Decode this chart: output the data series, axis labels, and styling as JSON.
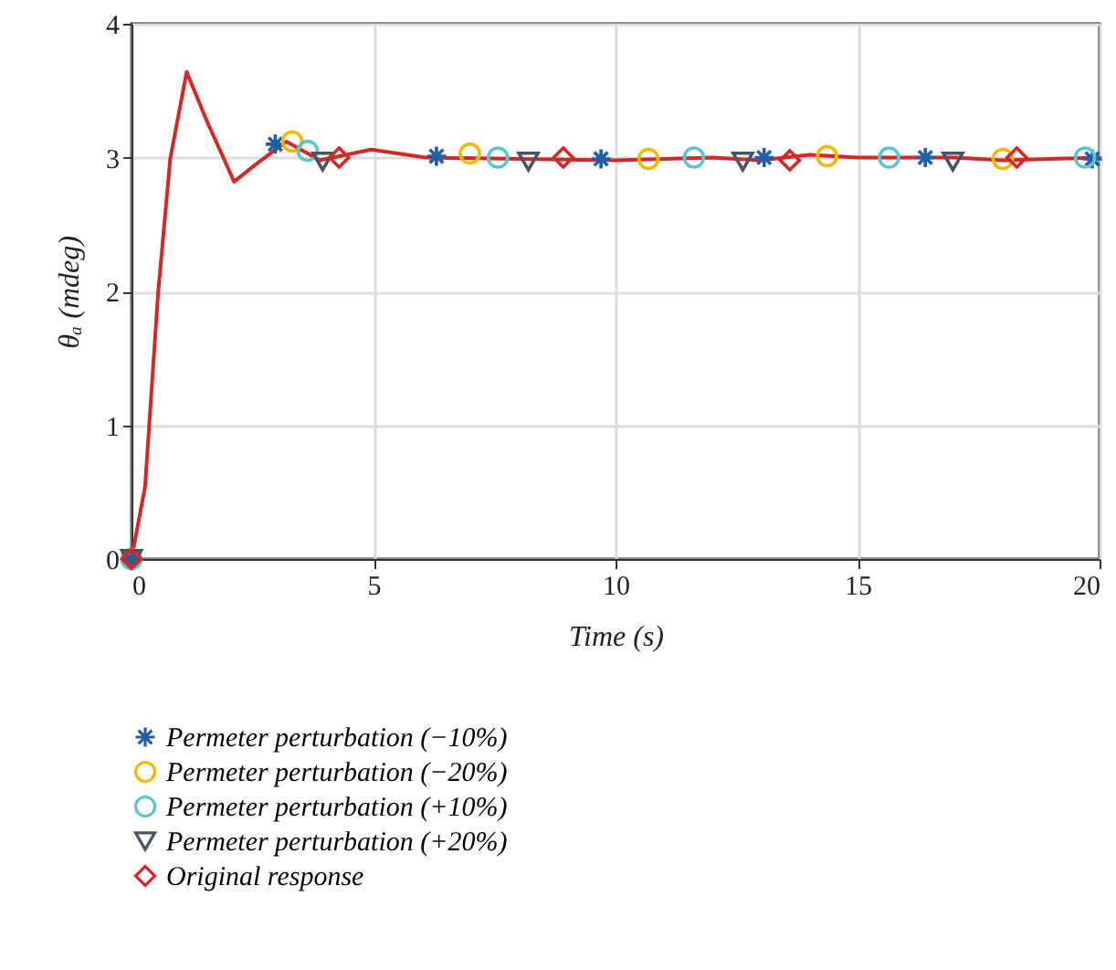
{
  "chart_data": {
    "type": "line",
    "xlabel": "Time (s)",
    "ylabel": "θₐ (mdeg)",
    "xlim": [
      0,
      20
    ],
    "ylim": [
      0,
      4
    ],
    "xticks": [
      0,
      5,
      10,
      15,
      20
    ],
    "yticks": [
      0,
      1,
      2,
      3,
      4
    ],
    "grid": true,
    "legend": "bottom",
    "series": [
      {
        "color": "#d62728",
        "marker": "none",
        "x": [
          0,
          0.28,
          0.55,
          0.8,
          1.14,
          1.56,
          2.12,
          2.57,
          3.2,
          3.89,
          4.95,
          6.08,
          8,
          10,
          12,
          13,
          14,
          15,
          17,
          18,
          20
        ],
        "values": [
          0,
          0.54,
          1.99,
          2.99,
          3.64,
          3.27,
          2.82,
          2.95,
          3.12,
          2.98,
          3.06,
          3.0,
          2.99,
          2.98,
          3.0,
          2.98,
          3.02,
          3.0,
          3.0,
          2.98,
          3.0
        ]
      },
      {
        "type": "scatter",
        "name": "Permeter perturbation (−10%)",
        "color": "#1f5fa8",
        "marker": "cross",
        "x": [
          0,
          2.97,
          6.3,
          9.7,
          13.07,
          16.4,
          19.85
        ],
        "values": [
          0,
          3.1,
          3.01,
          2.99,
          3.0,
          3.0,
          2.99
        ]
      },
      {
        "type": "scatter",
        "name": "Permeter perturbation (−20%)",
        "color": "#f5b800",
        "marker": "circle",
        "x": [
          0,
          3.32,
          6.99,
          10.68,
          14.37,
          18.0
        ],
        "values": [
          0,
          3.12,
          3.03,
          2.99,
          3.01,
          2.99
        ]
      },
      {
        "type": "scatter",
        "name": "Permeter perturbation (+10%)",
        "color": "#5bc4cc",
        "marker": "circle",
        "x": [
          0,
          3.64,
          7.57,
          11.62,
          15.65,
          19.7
        ],
        "values": [
          0,
          3.05,
          3.0,
          3.0,
          3.0,
          3.0
        ]
      },
      {
        "type": "scatter",
        "name": "Permeter perturbation (+20%)",
        "color": "#4a5563",
        "marker": "triangle",
        "x": [
          0,
          3.95,
          8.2,
          12.63,
          16.97
        ],
        "values": [
          0,
          2.97,
          2.97,
          2.97,
          2.97
        ]
      },
      {
        "type": "scatter",
        "name": "Original response",
        "color": "#d62728",
        "marker": "diamond",
        "x": [
          0,
          4.29,
          8.92,
          13.6,
          18.29
        ],
        "values": [
          0,
          3.0,
          3.0,
          2.98,
          3.0
        ]
      }
    ]
  }
}
